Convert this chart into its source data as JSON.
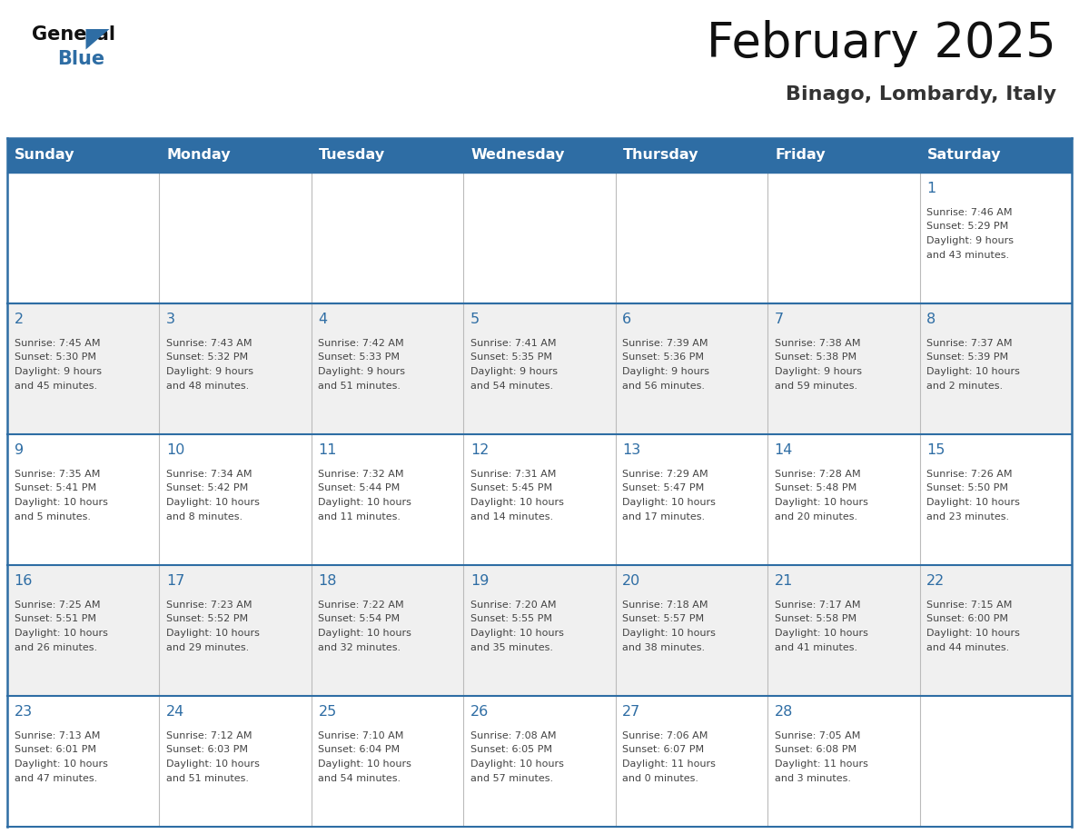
{
  "title": "February 2025",
  "subtitle": "Binago, Lombardy, Italy",
  "header_bg_color": "#2E6DA4",
  "header_text_color": "#FFFFFF",
  "day_names": [
    "Sunday",
    "Monday",
    "Tuesday",
    "Wednesday",
    "Thursday",
    "Friday",
    "Saturday"
  ],
  "cell_bg_even": "#FFFFFF",
  "cell_bg_odd": "#F0F0F0",
  "date_text_color": "#2E6DA4",
  "info_text_color": "#444444",
  "border_color": "#2E6DA4",
  "grid_color": "#BBBBBB",
  "background_color": "#FFFFFF",
  "calendar_data": [
    [
      null,
      null,
      null,
      null,
      null,
      null,
      {
        "day": 1,
        "sunrise": "7:46 AM",
        "sunset": "5:29 PM",
        "daylight_line1": "Daylight: 9 hours",
        "daylight_line2": "and 43 minutes."
      }
    ],
    [
      {
        "day": 2,
        "sunrise": "7:45 AM",
        "sunset": "5:30 PM",
        "daylight_line1": "Daylight: 9 hours",
        "daylight_line2": "and 45 minutes."
      },
      {
        "day": 3,
        "sunrise": "7:43 AM",
        "sunset": "5:32 PM",
        "daylight_line1": "Daylight: 9 hours",
        "daylight_line2": "and 48 minutes."
      },
      {
        "day": 4,
        "sunrise": "7:42 AM",
        "sunset": "5:33 PM",
        "daylight_line1": "Daylight: 9 hours",
        "daylight_line2": "and 51 minutes."
      },
      {
        "day": 5,
        "sunrise": "7:41 AM",
        "sunset": "5:35 PM",
        "daylight_line1": "Daylight: 9 hours",
        "daylight_line2": "and 54 minutes."
      },
      {
        "day": 6,
        "sunrise": "7:39 AM",
        "sunset": "5:36 PM",
        "daylight_line1": "Daylight: 9 hours",
        "daylight_line2": "and 56 minutes."
      },
      {
        "day": 7,
        "sunrise": "7:38 AM",
        "sunset": "5:38 PM",
        "daylight_line1": "Daylight: 9 hours",
        "daylight_line2": "and 59 minutes."
      },
      {
        "day": 8,
        "sunrise": "7:37 AM",
        "sunset": "5:39 PM",
        "daylight_line1": "Daylight: 10 hours",
        "daylight_line2": "and 2 minutes."
      }
    ],
    [
      {
        "day": 9,
        "sunrise": "7:35 AM",
        "sunset": "5:41 PM",
        "daylight_line1": "Daylight: 10 hours",
        "daylight_line2": "and 5 minutes."
      },
      {
        "day": 10,
        "sunrise": "7:34 AM",
        "sunset": "5:42 PM",
        "daylight_line1": "Daylight: 10 hours",
        "daylight_line2": "and 8 minutes."
      },
      {
        "day": 11,
        "sunrise": "7:32 AM",
        "sunset": "5:44 PM",
        "daylight_line1": "Daylight: 10 hours",
        "daylight_line2": "and 11 minutes."
      },
      {
        "day": 12,
        "sunrise": "7:31 AM",
        "sunset": "5:45 PM",
        "daylight_line1": "Daylight: 10 hours",
        "daylight_line2": "and 14 minutes."
      },
      {
        "day": 13,
        "sunrise": "7:29 AM",
        "sunset": "5:47 PM",
        "daylight_line1": "Daylight: 10 hours",
        "daylight_line2": "and 17 minutes."
      },
      {
        "day": 14,
        "sunrise": "7:28 AM",
        "sunset": "5:48 PM",
        "daylight_line1": "Daylight: 10 hours",
        "daylight_line2": "and 20 minutes."
      },
      {
        "day": 15,
        "sunrise": "7:26 AM",
        "sunset": "5:50 PM",
        "daylight_line1": "Daylight: 10 hours",
        "daylight_line2": "and 23 minutes."
      }
    ],
    [
      {
        "day": 16,
        "sunrise": "7:25 AM",
        "sunset": "5:51 PM",
        "daylight_line1": "Daylight: 10 hours",
        "daylight_line2": "and 26 minutes."
      },
      {
        "day": 17,
        "sunrise": "7:23 AM",
        "sunset": "5:52 PM",
        "daylight_line1": "Daylight: 10 hours",
        "daylight_line2": "and 29 minutes."
      },
      {
        "day": 18,
        "sunrise": "7:22 AM",
        "sunset": "5:54 PM",
        "daylight_line1": "Daylight: 10 hours",
        "daylight_line2": "and 32 minutes."
      },
      {
        "day": 19,
        "sunrise": "7:20 AM",
        "sunset": "5:55 PM",
        "daylight_line1": "Daylight: 10 hours",
        "daylight_line2": "and 35 minutes."
      },
      {
        "day": 20,
        "sunrise": "7:18 AM",
        "sunset": "5:57 PM",
        "daylight_line1": "Daylight: 10 hours",
        "daylight_line2": "and 38 minutes."
      },
      {
        "day": 21,
        "sunrise": "7:17 AM",
        "sunset": "5:58 PM",
        "daylight_line1": "Daylight: 10 hours",
        "daylight_line2": "and 41 minutes."
      },
      {
        "day": 22,
        "sunrise": "7:15 AM",
        "sunset": "6:00 PM",
        "daylight_line1": "Daylight: 10 hours",
        "daylight_line2": "and 44 minutes."
      }
    ],
    [
      {
        "day": 23,
        "sunrise": "7:13 AM",
        "sunset": "6:01 PM",
        "daylight_line1": "Daylight: 10 hours",
        "daylight_line2": "and 47 minutes."
      },
      {
        "day": 24,
        "sunrise": "7:12 AM",
        "sunset": "6:03 PM",
        "daylight_line1": "Daylight: 10 hours",
        "daylight_line2": "and 51 minutes."
      },
      {
        "day": 25,
        "sunrise": "7:10 AM",
        "sunset": "6:04 PM",
        "daylight_line1": "Daylight: 10 hours",
        "daylight_line2": "and 54 minutes."
      },
      {
        "day": 26,
        "sunrise": "7:08 AM",
        "sunset": "6:05 PM",
        "daylight_line1": "Daylight: 10 hours",
        "daylight_line2": "and 57 minutes."
      },
      {
        "day": 27,
        "sunrise": "7:06 AM",
        "sunset": "6:07 PM",
        "daylight_line1": "Daylight: 11 hours",
        "daylight_line2": "and 0 minutes."
      },
      {
        "day": 28,
        "sunrise": "7:05 AM",
        "sunset": "6:08 PM",
        "daylight_line1": "Daylight: 11 hours",
        "daylight_line2": "and 3 minutes."
      },
      null
    ]
  ]
}
